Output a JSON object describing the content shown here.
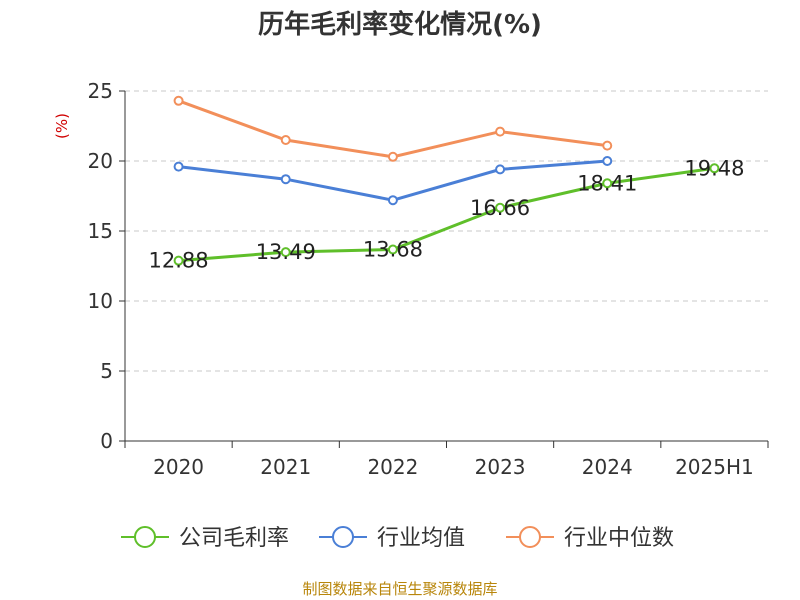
{
  "chart_data": {
    "type": "line",
    "title": "历年毛利率变化情况(%)",
    "ylabel": "(%)",
    "categories": [
      "2020",
      "2021",
      "2022",
      "2023",
      "2024",
      "2025H1"
    ],
    "ylim": [
      0,
      25
    ],
    "yticks": [
      "0",
      "5",
      "10",
      "15",
      "20",
      "25"
    ],
    "grid": true,
    "legend_position": "bottom",
    "series": [
      {
        "name": "公司毛利率",
        "color": "#5fbf2a",
        "values": [
          12.88,
          13.49,
          13.68,
          16.66,
          18.41,
          19.48
        ],
        "labels": [
          "12.88",
          "13.49",
          "13.68",
          "16.66",
          "18.41",
          "19.48"
        ]
      },
      {
        "name": "行业均值",
        "color": "#4a7fd6",
        "values": [
          19.6,
          18.7,
          17.2,
          19.4,
          20.0,
          null
        ]
      },
      {
        "name": "行业中位数",
        "color": "#f28f5a",
        "values": [
          24.3,
          21.5,
          20.3,
          22.1,
          21.1,
          null
        ]
      }
    ]
  },
  "footer": {
    "source": "制图数据来自恒生聚源数据库"
  }
}
